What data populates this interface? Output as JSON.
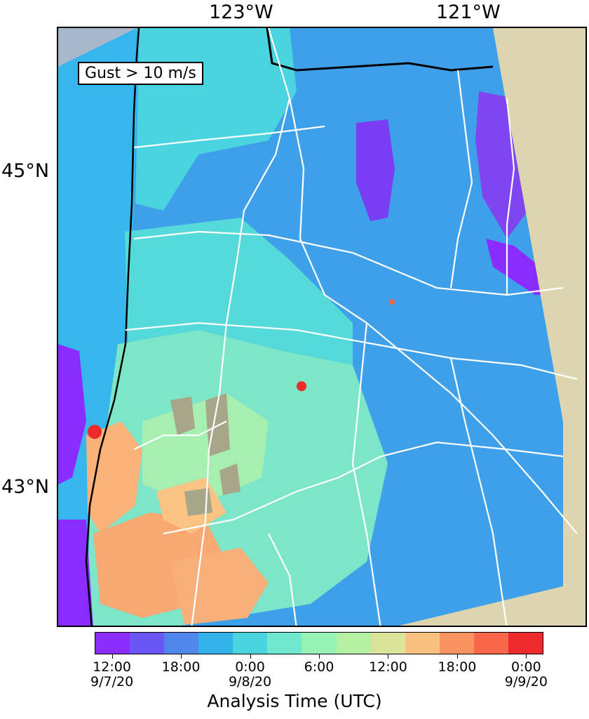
{
  "map": {
    "lon_labels": [
      "123°W",
      "121°W"
    ],
    "lat_labels": [
      "45°N",
      "43°N"
    ],
    "legend_label": "Gust > 10 m/s"
  },
  "colorbar": {
    "title": "Analysis Time (UTC)",
    "colors": [
      "#8a2cff",
      "#6a55f5",
      "#4f86ec",
      "#31b2eb",
      "#4ad4df",
      "#6ee8cf",
      "#98f2b5",
      "#b6f0a0",
      "#d9e39a",
      "#f8c17d",
      "#f99461",
      "#f7684a",
      "#ee2a2a"
    ],
    "ticks": [
      {
        "time": "12:00",
        "date": "9/7/20"
      },
      {
        "time": "18:00",
        "date": ""
      },
      {
        "time": "0:00",
        "date": "9/8/20"
      },
      {
        "time": "6:00",
        "date": ""
      },
      {
        "time": "12:00",
        "date": ""
      },
      {
        "time": "18:00",
        "date": ""
      },
      {
        "time": "0:00",
        "date": "9/9/20"
      }
    ]
  }
}
